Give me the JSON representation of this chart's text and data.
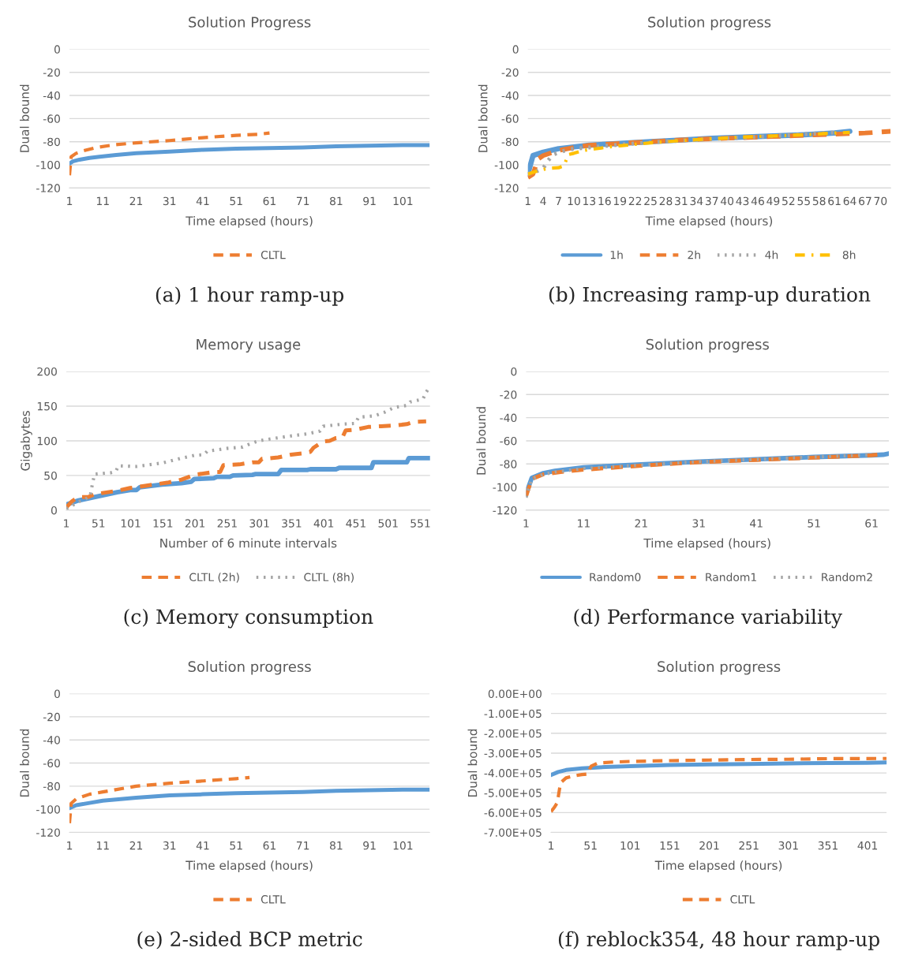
{
  "chart_data": [
    {
      "type": "line",
      "title": "Solution Progress",
      "xlabel": "Time elapsed (hours)",
      "ylabel": "Dual bound",
      "xlim": [
        1,
        109
      ],
      "xticks": [
        1,
        11,
        21,
        31,
        41,
        51,
        61,
        71,
        81,
        91,
        101
      ],
      "ylim": [
        -120,
        0
      ],
      "yticks": [
        0,
        -20,
        -40,
        -60,
        -80,
        -100,
        -120
      ],
      "grid": "y",
      "legend": "bottom",
      "marker": "none",
      "annotations": [
        "(a) 1 hour ramp-up"
      ],
      "series": [
        {
          "color": "#5b9bd5",
          "line_style": "solid",
          "x": [
            1,
            2,
            4,
            7,
            10,
            15,
            21,
            31,
            41,
            51,
            61,
            71,
            81,
            91,
            101,
            109
          ],
          "values": [
            -99,
            -97,
            -95.5,
            -94,
            -93,
            -91.5,
            -90,
            -88.5,
            -87,
            -86,
            -85.5,
            -85,
            -84,
            -83.5,
            -83,
            -83
          ]
        },
        {
          "name": "CLTL",
          "color": "#ed7d31",
          "line_style": "dashed",
          "x": [
            1,
            1.5,
            3,
            5,
            9,
            15,
            21,
            31,
            41,
            51,
            58,
            61
          ],
          "values": [
            -109,
            -93,
            -90,
            -88,
            -85,
            -82.5,
            -81,
            -79,
            -76.5,
            -74.5,
            -73.5,
            -72.5
          ]
        }
      ]
    },
    {
      "type": "line",
      "title": "Solution progress",
      "xlabel": "Time elapsed (hours)",
      "ylabel": "Dual bound",
      "xlim": [
        1,
        72
      ],
      "xticks": [
        1,
        4,
        7,
        10,
        13,
        16,
        19,
        22,
        25,
        28,
        31,
        34,
        37,
        40,
        43,
        46,
        49,
        52,
        55,
        58,
        61,
        64,
        67,
        70
      ],
      "ylim": [
        -120,
        0
      ],
      "yticks": [
        0,
        -20,
        -40,
        -60,
        -80,
        -100,
        -120
      ],
      "grid": "y",
      "legend": "bottom",
      "marker": "none",
      "annotations": [
        "(b) Increasing ramp-up duration"
      ],
      "series": [
        {
          "name": "1h",
          "color": "#5b9bd5",
          "line_style": "solid",
          "x": [
            1,
            2,
            4,
            7,
            10,
            13,
            19,
            25,
            31,
            37,
            43,
            49,
            55,
            61,
            64
          ],
          "values": [
            -108,
            -92,
            -89,
            -86,
            -84.5,
            -83,
            -81.5,
            -80,
            -78.5,
            -77,
            -76,
            -75,
            -74,
            -72.5,
            -71
          ]
        },
        {
          "name": "2h",
          "color": "#ed7d31",
          "line_style": "dashed",
          "x": [
            1,
            2,
            3,
            4,
            7,
            10,
            13,
            19,
            25,
            31,
            37,
            43,
            49,
            55,
            61,
            64,
            67,
            72
          ],
          "values": [
            -111,
            -108,
            -95,
            -92,
            -87.5,
            -85,
            -83,
            -81.5,
            -80,
            -78.5,
            -77.5,
            -76.5,
            -75.5,
            -74.5,
            -73.5,
            -73,
            -72.5,
            -71
          ]
        },
        {
          "name": "4h",
          "color": "#a5a5a5",
          "line_style": "dotted",
          "x": [
            1,
            3,
            4,
            5,
            6,
            8,
            10,
            13,
            19,
            25,
            31,
            37,
            43,
            49,
            55,
            61
          ],
          "values": [
            -108,
            -105,
            -103,
            -96,
            -91,
            -88,
            -86,
            -85,
            -82.5,
            -80.5,
            -79,
            -77.5,
            -76.5,
            -75,
            -73.5,
            -72
          ]
        },
        {
          "name": "8h",
          "color": "#ffc000",
          "line_style": "dashdot",
          "x": [
            1,
            3,
            4,
            5,
            7,
            8,
            9,
            10,
            12,
            16,
            19,
            25,
            31,
            37,
            43,
            49,
            55,
            61,
            64
          ],
          "values": [
            -108,
            -105,
            -104,
            -103,
            -102.5,
            -101,
            -91,
            -90,
            -87.5,
            -85,
            -83.5,
            -81,
            -79,
            -77.5,
            -76,
            -75,
            -74,
            -72.5,
            -72
          ]
        }
      ]
    },
    {
      "type": "line",
      "title": "Memory usage",
      "xlabel": "Number of 6 minute intervals",
      "ylabel": "Gigabytes",
      "xlim": [
        1,
        566
      ],
      "xticks": [
        1,
        51,
        101,
        151,
        201,
        251,
        301,
        351,
        401,
        451,
        501,
        551
      ],
      "ylim": [
        0,
        200
      ],
      "yticks": [
        0,
        50,
        100,
        150,
        200
      ],
      "grid": "y",
      "legend": "bottom",
      "marker": "none",
      "annotations": [
        "(c) Memory consumption"
      ],
      "series": [
        {
          "color": "#5b9bd5",
          "line_style": "solid",
          "x": [
            1,
            20,
            40,
            60,
            80,
            100,
            110,
            115,
            150,
            180,
            195,
            200,
            230,
            235,
            255,
            260,
            290,
            295,
            330,
            335,
            375,
            380,
            420,
            425,
            475,
            478,
            530,
            533,
            566
          ],
          "values": [
            8,
            14,
            18,
            22,
            26,
            29,
            29,
            33,
            37,
            39,
            41,
            45,
            46,
            48,
            48,
            50,
            51,
            52,
            52,
            58,
            58,
            59,
            59,
            61,
            61,
            69,
            69,
            75,
            75
          ]
        },
        {
          "name": "CLTL (2h)",
          "color": "#ed7d31",
          "line_style": "dashed",
          "x": [
            1,
            10,
            20,
            35,
            45,
            80,
            100,
            130,
            160,
            180,
            200,
            230,
            240,
            245,
            270,
            290,
            300,
            305,
            330,
            350,
            370,
            380,
            385,
            400,
            410,
            420,
            430,
            435,
            450,
            470,
            490,
            510,
            530,
            540,
            560
          ],
          "values": [
            4,
            13,
            19,
            19,
            23,
            28,
            32,
            36,
            40,
            44,
            51,
            55,
            55,
            65,
            66,
            69,
            69,
            74,
            76,
            80,
            82,
            84,
            90,
            99,
            100,
            104,
            105,
            115,
            116,
            120,
            121,
            122,
            124,
            127,
            128
          ]
        },
        {
          "name": "CLTL (8h)",
          "color": "#a5a5a5",
          "line_style": "dotted",
          "x": [
            1,
            20,
            30,
            38,
            42,
            45,
            70,
            78,
            82,
            110,
            150,
            180,
            200,
            215,
            220,
            250,
            275,
            285,
            300,
            320,
            350,
            375,
            395,
            400,
            430,
            450,
            455,
            480,
            495,
            510,
            530,
            535,
            555,
            560,
            565
          ],
          "values": [
            2,
            12,
            16,
            20,
            40,
            52,
            54,
            56,
            64,
            63,
            68,
            75,
            79,
            80,
            85,
            89,
            91,
            95,
            100,
            103,
            107,
            110,
            114,
            121,
            124,
            125,
            134,
            136,
            141,
            148,
            151,
            156,
            160,
            170,
            177
          ]
        }
      ]
    },
    {
      "type": "line",
      "title": "Solution progress",
      "xlabel": "Time elapsed (hours)",
      "ylabel": "Dual bound",
      "xlim": [
        1,
        64
      ],
      "xticks": [
        1,
        11,
        21,
        31,
        41,
        51,
        61
      ],
      "ylim": [
        -120,
        0
      ],
      "yticks": [
        0,
        -20,
        -40,
        -60,
        -80,
        -100,
        -120
      ],
      "grid": "y",
      "legend": "bottom",
      "marker": "none",
      "annotations": [
        "(d) Performance variability"
      ],
      "series": [
        {
          "name": "Random0",
          "color": "#5b9bd5",
          "line_style": "solid",
          "x": [
            1,
            2,
            4,
            6,
            11,
            21,
            31,
            41,
            51,
            61,
            63,
            64
          ],
          "values": [
            -106,
            -92,
            -88,
            -86,
            -83,
            -80.5,
            -78,
            -76,
            -74,
            -72.5,
            -72,
            -71
          ]
        },
        {
          "name": "Random1",
          "color": "#ed7d31",
          "line_style": "dashed",
          "x": [
            1,
            2,
            4,
            7,
            11,
            21,
            31,
            41,
            51,
            61,
            62
          ],
          "values": [
            -108,
            -93,
            -89,
            -87,
            -85,
            -81.5,
            -78.5,
            -76.5,
            -74.5,
            -72.5,
            -72
          ]
        },
        {
          "name": "Random2",
          "color": "#a5a5a5",
          "line_style": "dotted",
          "x": [
            1,
            2,
            4,
            6,
            11,
            21,
            31,
            41,
            51,
            61
          ],
          "values": [
            -109,
            -93,
            -89,
            -87,
            -84,
            -81,
            -78,
            -76,
            -74,
            -72
          ]
        }
      ]
    },
    {
      "type": "line",
      "title": "Solution progress",
      "xlabel": "Time elapsed (hours)",
      "ylabel": "Dual bound",
      "xlim": [
        1,
        109
      ],
      "xticks": [
        1,
        11,
        21,
        31,
        41,
        51,
        61,
        71,
        81,
        91,
        101
      ],
      "ylim": [
        -120,
        0
      ],
      "yticks": [
        0,
        -20,
        -40,
        -60,
        -80,
        -100,
        -120
      ],
      "grid": "y",
      "legend": "bottom",
      "marker": "none",
      "annotations": [
        "(e) 2-sided BCP metric"
      ],
      "series": [
        {
          "color": "#5b9bd5",
          "line_style": "solid",
          "x": [
            1,
            3,
            7,
            11,
            21,
            31,
            41,
            51,
            61,
            71,
            81,
            91,
            101,
            109
          ],
          "values": [
            -99,
            -96.5,
            -94.5,
            -92.5,
            -90,
            -88,
            -87,
            -86,
            -85.5,
            -85,
            -84,
            -83.5,
            -83,
            -83
          ]
        },
        {
          "name": "CLTL",
          "color": "#ed7d31",
          "line_style": "dashed",
          "x": [
            1,
            1.5,
            3,
            7,
            11,
            21,
            31,
            41,
            51,
            55
          ],
          "values": [
            -112,
            -95,
            -91,
            -87,
            -85,
            -80,
            -77.5,
            -75.5,
            -73.5,
            -72.5
          ]
        }
      ]
    },
    {
      "type": "line",
      "title": "Solution progress",
      "xlabel": "Time elapsed (hours)",
      "ylabel": "Dual bound",
      "xlim": [
        1,
        425
      ],
      "xticks": [
        1,
        51,
        101,
        151,
        201,
        251,
        301,
        351,
        401
      ],
      "ylim": [
        -700000,
        0
      ],
      "yticks": [
        {
          "value": 0,
          "label": "0.00E+00"
        },
        {
          "value": -100000,
          "label": "-1.00E+05"
        },
        {
          "value": -200000,
          "label": "-2.00E+05"
        },
        {
          "value": -300000,
          "label": "-3.00E+05"
        },
        {
          "value": -400000,
          "label": "-4.00E+05"
        },
        {
          "value": -500000,
          "label": "-5.00E+05"
        },
        {
          "value": -600000,
          "label": "-6.00E+05"
        },
        {
          "value": -700000,
          "label": "-7.00E+05"
        }
      ],
      "grid": "y",
      "legend": "bottom",
      "marker": "none",
      "annotations": [
        "(f) reblock354, 48 hour ramp-up"
      ],
      "series": [
        {
          "color": "#5b9bd5",
          "line_style": "solid",
          "x": [
            1,
            10,
            20,
            40,
            70,
            101,
            151,
            201,
            251,
            301,
            351,
            401,
            425
          ],
          "values": [
            -410000,
            -395000,
            -385000,
            -377000,
            -370000,
            -366000,
            -360000,
            -357000,
            -355000,
            -352000,
            -350000,
            -349000,
            -347000
          ]
        },
        {
          "name": "CLTL",
          "color": "#ed7d31",
          "line_style": "dashed",
          "x": [
            1,
            5,
            9,
            11,
            13,
            20,
            30,
            40,
            48,
            50,
            52,
            60,
            80,
            101,
            151,
            201,
            251,
            301,
            351,
            425
          ],
          "values": [
            -595000,
            -575000,
            -550000,
            -500000,
            -450000,
            -425000,
            -415000,
            -408000,
            -405000,
            -380000,
            -365000,
            -350000,
            -345000,
            -342000,
            -338000,
            -335000,
            -332000,
            -331000,
            -328000,
            -327000
          ]
        }
      ]
    }
  ]
}
